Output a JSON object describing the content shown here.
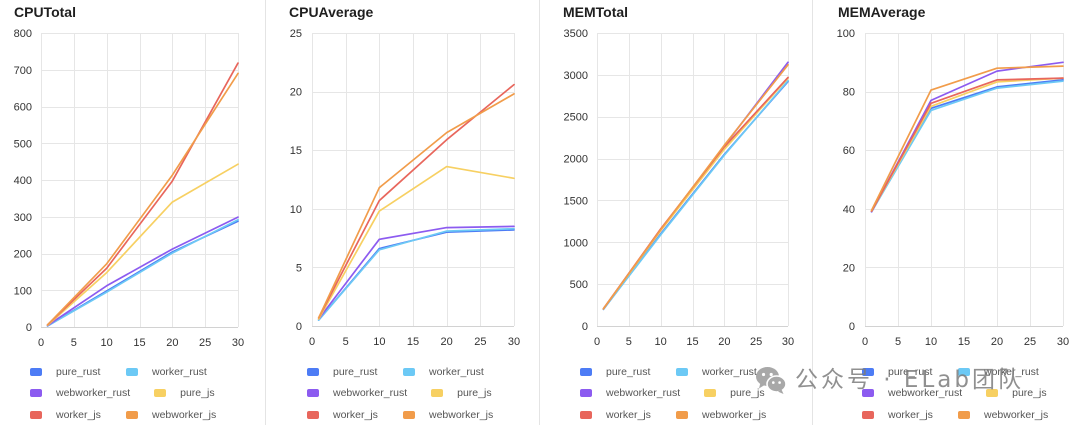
{
  "figure": {
    "watermark": {
      "text": "公众号 · ELab团队",
      "icon": "wechat-icon"
    }
  },
  "chart_data": [
    {
      "type": "line",
      "title": "CPUTotal",
      "xlabel": "",
      "ylabel": "",
      "x": [
        1,
        10,
        20,
        30
      ],
      "xlim": [
        0,
        30
      ],
      "xticks": [
        0,
        5,
        10,
        15,
        20,
        25,
        30
      ],
      "ylim": [
        0,
        800
      ],
      "yticks": [
        0,
        100,
        200,
        300,
        400,
        500,
        600,
        700,
        800
      ],
      "grid": true,
      "legend": "bottom-left",
      "series": [
        {
          "name": "pure_rust",
          "color": "#4d7cf5",
          "values": [
            3,
            98,
            204,
            288
          ]
        },
        {
          "name": "worker_rust",
          "color": "#6cc9f5",
          "values": [
            3,
            95,
            201,
            292
          ]
        },
        {
          "name": "webworker_rust",
          "color": "#8c5bf0",
          "values": [
            4,
            112,
            212,
            299
          ]
        },
        {
          "name": "pure_js",
          "color": "#f7d062",
          "values": [
            5,
            148,
            340,
            443
          ]
        },
        {
          "name": "worker_js",
          "color": "#e8665c",
          "values": [
            6,
            160,
            397,
            718
          ]
        },
        {
          "name": "webworker_js",
          "color": "#f19c4a",
          "values": [
            6,
            172,
            413,
            690
          ]
        }
      ]
    },
    {
      "type": "line",
      "title": "CPUAverage",
      "xlabel": "",
      "ylabel": "",
      "x": [
        1,
        10,
        20,
        30
      ],
      "xlim": [
        0,
        30
      ],
      "xticks": [
        0,
        5,
        10,
        15,
        20,
        25,
        30
      ],
      "ylim": [
        0,
        25
      ],
      "yticks": [
        0,
        5,
        10,
        15,
        20,
        25
      ],
      "grid": true,
      "legend": "bottom-left",
      "series": [
        {
          "name": "pure_rust",
          "color": "#4d7cf5",
          "values": [
            0.5,
            6.6,
            8.0,
            8.2
          ]
        },
        {
          "name": "worker_rust",
          "color": "#6cc9f5",
          "values": [
            0.5,
            6.5,
            8.1,
            8.3
          ]
        },
        {
          "name": "webworker_rust",
          "color": "#8c5bf0",
          "values": [
            0.6,
            7.4,
            8.4,
            8.5
          ]
        },
        {
          "name": "pure_js",
          "color": "#f7d062",
          "values": [
            0.6,
            9.8,
            13.6,
            12.6
          ]
        },
        {
          "name": "worker_js",
          "color": "#e8665c",
          "values": [
            0.7,
            10.7,
            15.9,
            20.6
          ]
        },
        {
          "name": "webworker_js",
          "color": "#f19c4a",
          "values": [
            0.7,
            11.8,
            16.5,
            19.8
          ]
        }
      ]
    },
    {
      "type": "line",
      "title": "MEMTotal",
      "xlabel": "",
      "ylabel": "",
      "x": [
        1,
        10,
        20,
        30
      ],
      "xlim": [
        0,
        30
      ],
      "xticks": [
        0,
        5,
        10,
        15,
        20,
        25,
        30
      ],
      "ylim": [
        0,
        3500
      ],
      "yticks": [
        0,
        500,
        1000,
        1500,
        2000,
        2500,
        3000,
        3500
      ],
      "grid": true,
      "legend": "bottom-left",
      "series": [
        {
          "name": "pure_rust",
          "color": "#4d7cf5",
          "values": [
            200,
            1100,
            2050,
            2920
          ]
        },
        {
          "name": "worker_rust",
          "color": "#6cc9f5",
          "values": [
            200,
            1090,
            2040,
            2930
          ]
        },
        {
          "name": "webworker_rust",
          "color": "#8c5bf0",
          "values": [
            205,
            1150,
            2150,
            3150
          ]
        },
        {
          "name": "pure_js",
          "color": "#f7d062",
          "values": [
            205,
            1140,
            2110,
            2960
          ]
        },
        {
          "name": "worker_js",
          "color": "#e8665c",
          "values": [
            205,
            1160,
            2140,
            2970
          ]
        },
        {
          "name": "webworker_js",
          "color": "#f19c4a",
          "values": [
            205,
            1150,
            2160,
            3120
          ]
        }
      ]
    },
    {
      "type": "line",
      "title": "MEMAverage",
      "xlabel": "",
      "ylabel": "",
      "x": [
        1,
        10,
        20,
        30
      ],
      "xlim": [
        0,
        30
      ],
      "xticks": [
        0,
        5,
        10,
        15,
        20,
        25,
        30
      ],
      "ylim": [
        0,
        100
      ],
      "yticks": [
        0,
        20,
        40,
        60,
        80,
        100
      ],
      "grid": true,
      "legend": "bottom-left",
      "series": [
        {
          "name": "pure_rust",
          "color": "#4d7cf5",
          "values": [
            39,
            74.3,
            81.6,
            84
          ]
        },
        {
          "name": "worker_rust",
          "color": "#6cc9f5",
          "values": [
            39,
            73.6,
            81.2,
            83.6
          ]
        },
        {
          "name": "webworker_rust",
          "color": "#8c5bf0",
          "values": [
            39,
            77,
            87,
            90
          ]
        },
        {
          "name": "pure_js",
          "color": "#f7d062",
          "values": [
            39.2,
            75,
            83.3,
            84.6
          ]
        },
        {
          "name": "worker_js",
          "color": "#e8665c",
          "values": [
            39.2,
            76,
            84,
            84.6
          ]
        },
        {
          "name": "webworker_js",
          "color": "#f19c4a",
          "values": [
            39.5,
            80.5,
            88,
            88.7
          ]
        }
      ]
    }
  ]
}
